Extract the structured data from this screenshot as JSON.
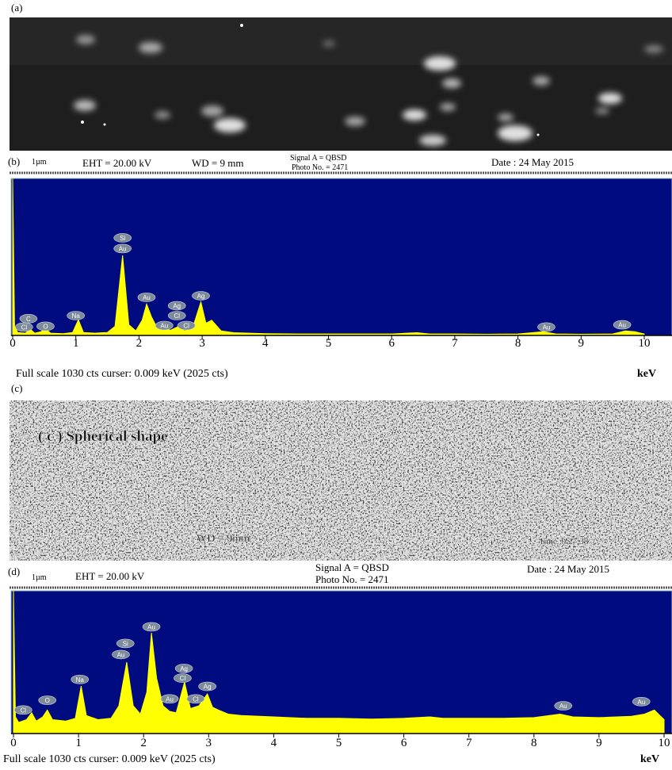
{
  "panel_a": {
    "label": "(a)"
  },
  "panel_b": {
    "label": "(b)",
    "scale": "1µm",
    "eht": "EHT = 20.00 kV",
    "wd": "WD = 9 mm",
    "signal": "Signal A = QBSD",
    "photo": "Photo No. = 2471",
    "date": "Date : 24 May 2015"
  },
  "panel_c": {
    "label": "(c)",
    "caption": "( c ) Spherical shape",
    "wd": "WD = 9mm",
    "time": "Time :9:27:38"
  },
  "panel_d": {
    "label": "(d)",
    "scale": "1µm",
    "eht": "EHT = 20.00 kV",
    "signal": "Signal A = QBSD",
    "photo": "Photo No. = 2471",
    "date": "Date : 24 May 2015"
  },
  "chart_data": [
    {
      "type": "area",
      "color": "#ffff00",
      "background": "#000b80",
      "footer": "Full scale 1030 cts  curser: 0.009 keV (2025 cts)",
      "x_label": "keV",
      "xlim": [
        0,
        10
      ],
      "ylim": [
        0,
        1030
      ],
      "xticks": [
        0,
        1,
        2,
        3,
        4,
        5,
        6,
        7,
        8,
        9,
        10
      ],
      "x": [
        0,
        0.03,
        0.08,
        0.2,
        0.28,
        0.35,
        0.45,
        0.52,
        0.6,
        0.8,
        0.95,
        1.04,
        1.12,
        1.3,
        1.5,
        1.62,
        1.74,
        1.84,
        1.95,
        2.05,
        2.12,
        2.2,
        2.3,
        2.4,
        2.5,
        2.63,
        2.72,
        2.85,
        2.98,
        3.06,
        3.15,
        3.3,
        3.5,
        4,
        4.5,
        5,
        5.5,
        6,
        6.4,
        6.6,
        7,
        7.5,
        8,
        8.4,
        8.6,
        9,
        9.5,
        9.7,
        9.85,
        10
      ],
      "values": [
        1030,
        60,
        20,
        15,
        40,
        15,
        25,
        45,
        15,
        12,
        20,
        103,
        20,
        15,
        20,
        60,
        525,
        70,
        30,
        100,
        206,
        120,
        40,
        45,
        35,
        60,
        30,
        50,
        220,
        80,
        100,
        30,
        18,
        12,
        10,
        10,
        10,
        10,
        18,
        10,
        10,
        8,
        10,
        25,
        10,
        8,
        10,
        30,
        25,
        10
      ],
      "annotations": [
        {
          "text": "Cl",
          "x": 0.18,
          "y": 55
        },
        {
          "text": "C",
          "x": 0.25,
          "y": 110
        },
        {
          "text": "O",
          "x": 0.52,
          "y": 60
        },
        {
          "text": "Na",
          "x": 1.0,
          "y": 130
        },
        {
          "text": "Au",
          "x": 1.74,
          "y": 570
        },
        {
          "text": "Si",
          "x": 1.74,
          "y": 640
        },
        {
          "text": "Au",
          "x": 2.12,
          "y": 250
        },
        {
          "text": "Au",
          "x": 2.4,
          "y": 65
        },
        {
          "text": "Cl",
          "x": 2.6,
          "y": 130
        },
        {
          "text": "Ag",
          "x": 2.6,
          "y": 195
        },
        {
          "text": "Cl",
          "x": 2.75,
          "y": 65
        },
        {
          "text": "Ag",
          "x": 2.98,
          "y": 260
        },
        {
          "text": "Au",
          "x": 8.45,
          "y": 55
        },
        {
          "text": "Au",
          "x": 9.65,
          "y": 70
        }
      ]
    },
    {
      "type": "area",
      "color": "#ffff00",
      "background": "#000b80",
      "footer": "Full scale 1030 cts  curser: 0.009 keV (2025 cts)",
      "x_label": "keV",
      "xlim": [
        0,
        10
      ],
      "ylim": [
        0,
        1030
      ],
      "xticks": [
        0,
        1,
        2,
        3,
        4,
        5,
        6,
        7,
        8,
        9,
        10
      ],
      "x": [
        0,
        0.03,
        0.08,
        0.2,
        0.28,
        0.35,
        0.45,
        0.52,
        0.6,
        0.8,
        0.95,
        1.04,
        1.12,
        1.3,
        1.5,
        1.62,
        1.74,
        1.84,
        1.95,
        2.05,
        2.12,
        2.2,
        2.3,
        2.4,
        2.5,
        2.63,
        2.72,
        2.85,
        2.98,
        3.06,
        3.15,
        3.3,
        3.5,
        4,
        4.5,
        5,
        5.5,
        6,
        6.4,
        6.6,
        7,
        7.5,
        8,
        8.4,
        8.6,
        9,
        9.5,
        9.7,
        9.85,
        10
      ],
      "values": [
        1030,
        120,
        80,
        100,
        150,
        90,
        120,
        170,
        100,
        90,
        110,
        343,
        130,
        100,
        110,
        200,
        515,
        200,
        140,
        300,
        727,
        400,
        200,
        160,
        150,
        372,
        180,
        200,
        286,
        190,
        170,
        140,
        130,
        120,
        110,
        110,
        105,
        110,
        120,
        110,
        110,
        110,
        115,
        140,
        120,
        115,
        125,
        140,
        170,
        100
      ],
      "annotations": [
        {
          "text": "Cl",
          "x": 0.15,
          "y": 170
        },
        {
          "text": "O",
          "x": 0.52,
          "y": 240
        },
        {
          "text": "Na",
          "x": 1.02,
          "y": 390
        },
        {
          "text": "Au",
          "x": 1.65,
          "y": 570
        },
        {
          "text": "Si",
          "x": 1.72,
          "y": 650
        },
        {
          "text": "Au",
          "x": 2.12,
          "y": 770
        },
        {
          "text": "Au",
          "x": 2.4,
          "y": 250
        },
        {
          "text": "Ag",
          "x": 2.62,
          "y": 470
        },
        {
          "text": "Cl",
          "x": 2.6,
          "y": 400
        },
        {
          "text": "Cl",
          "x": 2.8,
          "y": 250
        },
        {
          "text": "Ag",
          "x": 2.98,
          "y": 340
        },
        {
          "text": "Au",
          "x": 8.45,
          "y": 200
        },
        {
          "text": "Au",
          "x": 9.65,
          "y": 230
        }
      ]
    }
  ]
}
